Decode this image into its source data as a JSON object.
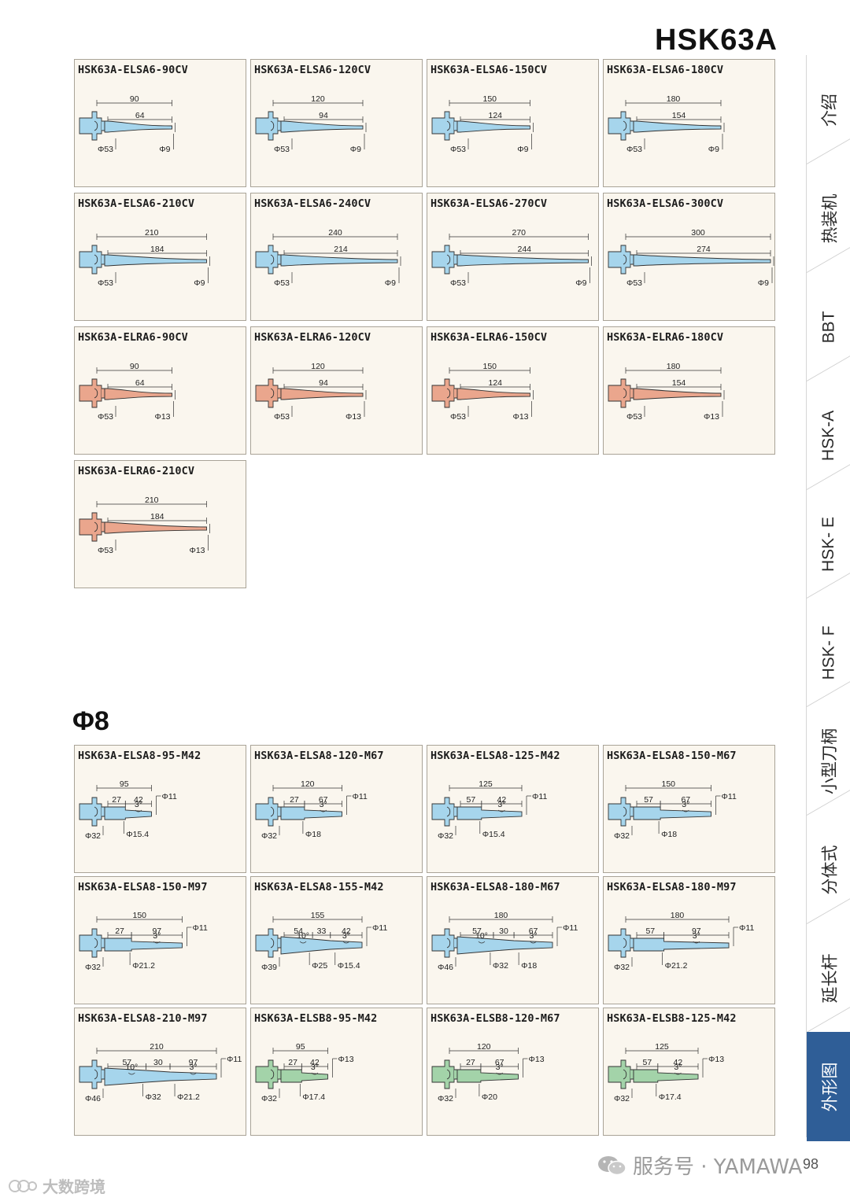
{
  "page_title": "HSK63A",
  "section_title": "Φ8",
  "group1": [
    {
      "model": "HSK63A-ELSA6-90CV",
      "kind": "cv",
      "color": "#a6d5ec",
      "l1": "90",
      "l2": "64",
      "d_shank": "Φ53",
      "d_tip": "Φ9",
      "len_ratio": 0.3
    },
    {
      "model": "HSK63A-ELSA6-120CV",
      "kind": "cv",
      "color": "#a6d5ec",
      "l1": "120",
      "l2": "94",
      "d_shank": "Φ53",
      "d_tip": "Φ9",
      "len_ratio": 0.4
    },
    {
      "model": "HSK63A-ELSA6-150CV",
      "kind": "cv",
      "color": "#a6d5ec",
      "l1": "150",
      "l2": "124",
      "d_shank": "Φ53",
      "d_tip": "Φ9",
      "len_ratio": 0.5
    },
    {
      "model": "HSK63A-ELSA6-180CV",
      "kind": "cv",
      "color": "#a6d5ec",
      "l1": "180",
      "l2": "154",
      "d_shank": "Φ53",
      "d_tip": "Φ9",
      "len_ratio": 0.6
    },
    {
      "model": "HSK63A-ELSA6-210CV",
      "kind": "cv",
      "color": "#a6d5ec",
      "l1": "210",
      "l2": "184",
      "d_shank": "Φ53",
      "d_tip": "Φ9",
      "len_ratio": 0.7
    },
    {
      "model": "HSK63A-ELSA6-240CV",
      "kind": "cv",
      "color": "#a6d5ec",
      "l1": "240",
      "l2": "214",
      "d_shank": "Φ53",
      "d_tip": "Φ9",
      "len_ratio": 0.8
    },
    {
      "model": "HSK63A-ELSA6-270CV",
      "kind": "cv",
      "color": "#a6d5ec",
      "l1": "270",
      "l2": "244",
      "d_shank": "Φ53",
      "d_tip": "Φ9",
      "len_ratio": 0.9
    },
    {
      "model": "HSK63A-ELSA6-300CV",
      "kind": "cv",
      "color": "#a6d5ec",
      "l1": "300",
      "l2": "274",
      "d_shank": "Φ53",
      "d_tip": "Φ9",
      "len_ratio": 1.0
    },
    {
      "model": "HSK63A-ELRA6-90CV",
      "kind": "cv",
      "color": "#eaa68d",
      "l1": "90",
      "l2": "64",
      "d_shank": "Φ53",
      "d_tip": "Φ13",
      "len_ratio": 0.3
    },
    {
      "model": "HSK63A-ELRA6-120CV",
      "kind": "cv",
      "color": "#eaa68d",
      "l1": "120",
      "l2": "94",
      "d_shank": "Φ53",
      "d_tip": "Φ13",
      "len_ratio": 0.4
    },
    {
      "model": "HSK63A-ELRA6-150CV",
      "kind": "cv",
      "color": "#eaa68d",
      "l1": "150",
      "l2": "124",
      "d_shank": "Φ53",
      "d_tip": "Φ13",
      "len_ratio": 0.5
    },
    {
      "model": "HSK63A-ELRA6-180CV",
      "kind": "cv",
      "color": "#eaa68d",
      "l1": "180",
      "l2": "154",
      "d_shank": "Φ53",
      "d_tip": "Φ13",
      "len_ratio": 0.6
    },
    {
      "model": "HSK63A-ELRA6-210CV",
      "kind": "cv",
      "color": "#eaa68d",
      "l1": "210",
      "l2": "184",
      "d_shank": "Φ53",
      "d_tip": "Φ13",
      "len_ratio": 0.7
    }
  ],
  "group2": [
    {
      "model": "HSK63A-ELSA8-95-M42",
      "kind": "m",
      "color": "#a6d5ec",
      "total": "95",
      "segs": [
        "27",
        "42"
      ],
      "angles": [
        "3°"
      ],
      "d_top": "Φ11",
      "d_shank": "Φ32",
      "d_bottom": [
        "Φ15.4"
      ],
      "len_ratio": 0.45
    },
    {
      "model": "HSK63A-ELSA8-120-M67",
      "kind": "m",
      "color": "#a6d5ec",
      "total": "120",
      "segs": [
        "27",
        "67"
      ],
      "angles": [
        "3°"
      ],
      "d_top": "Φ11",
      "d_shank": "Φ32",
      "d_bottom": [
        "Φ18"
      ],
      "len_ratio": 0.57
    },
    {
      "model": "HSK63A-ELSA8-125-M42",
      "kind": "m",
      "color": "#a6d5ec",
      "total": "125",
      "segs": [
        "57",
        "42"
      ],
      "angles": [
        "3°"
      ],
      "d_top": "Φ11",
      "d_shank": "Φ32",
      "d_bottom": [
        "Φ15.4"
      ],
      "len_ratio": 0.6
    },
    {
      "model": "HSK63A-ELSA8-150-M67",
      "kind": "m",
      "color": "#a6d5ec",
      "total": "150",
      "segs": [
        "57",
        "67"
      ],
      "angles": [
        "3°"
      ],
      "d_top": "Φ11",
      "d_shank": "Φ32",
      "d_bottom": [
        "Φ18"
      ],
      "len_ratio": 0.71
    },
    {
      "model": "HSK63A-ELSA8-150-M97",
      "kind": "m",
      "color": "#a6d5ec",
      "total": "150",
      "segs": [
        "27",
        "97"
      ],
      "angles": [
        "3°"
      ],
      "d_top": "Φ11",
      "d_shank": "Φ32",
      "d_bottom": [
        "Φ21.2"
      ],
      "len_ratio": 0.71
    },
    {
      "model": "HSK63A-ELSA8-155-M42",
      "kind": "m",
      "color": "#a6d5ec",
      "total": "155",
      "segs": [
        "54",
        "33",
        "42"
      ],
      "angles": [
        "10°",
        "3°"
      ],
      "d_top": "Φ11",
      "d_shank": "Φ39",
      "d_bottom": [
        "Φ25",
        "Φ15.4"
      ],
      "len_ratio": 0.74
    },
    {
      "model": "HSK63A-ELSA8-180-M67",
      "kind": "m",
      "color": "#a6d5ec",
      "total": "180",
      "segs": [
        "57",
        "30",
        "67"
      ],
      "angles": [
        "10°",
        "3°"
      ],
      "d_top": "Φ11",
      "d_shank": "Φ46",
      "d_bottom": [
        "Φ32",
        "Φ18"
      ],
      "len_ratio": 0.86
    },
    {
      "model": "HSK63A-ELSA8-180-M97",
      "kind": "m",
      "color": "#a6d5ec",
      "total": "180",
      "segs": [
        "57",
        "97"
      ],
      "angles": [
        "3°"
      ],
      "d_top": "Φ11",
      "d_shank": "Φ32",
      "d_bottom": [
        "Φ21.2"
      ],
      "len_ratio": 0.86
    },
    {
      "model": "HSK63A-ELSA8-210-M97",
      "kind": "m",
      "color": "#a6d5ec",
      "total": "210",
      "segs": [
        "57",
        "30",
        "97"
      ],
      "angles": [
        "10°",
        "3°"
      ],
      "d_top": "Φ11",
      "d_shank": "Φ46",
      "d_bottom": [
        "Φ32",
        "Φ21.2"
      ],
      "len_ratio": 1.0
    },
    {
      "model": "HSK63A-ELSB8-95-M42",
      "kind": "m",
      "color": "#a3d3a9",
      "total": "95",
      "segs": [
        "27",
        "42"
      ],
      "angles": [
        "3°"
      ],
      "d_top": "Φ13",
      "d_shank": "Φ32",
      "d_bottom": [
        "Φ17.4"
      ],
      "len_ratio": 0.45
    },
    {
      "model": "HSK63A-ELSB8-120-M67",
      "kind": "m",
      "color": "#a3d3a9",
      "total": "120",
      "segs": [
        "27",
        "67"
      ],
      "angles": [
        "3°"
      ],
      "d_top": "Φ13",
      "d_shank": "Φ32",
      "d_bottom": [
        "Φ20"
      ],
      "len_ratio": 0.57
    },
    {
      "model": "HSK63A-ELSB8-125-M42",
      "kind": "m",
      "color": "#a3d3a9",
      "total": "125",
      "segs": [
        "57",
        "42"
      ],
      "angles": [
        "3°"
      ],
      "d_top": "Φ13",
      "d_shank": "Φ32",
      "d_bottom": [
        "Φ17.4"
      ],
      "len_ratio": 0.6
    }
  ],
  "side_nav": [
    {
      "label": "介绍",
      "active": false
    },
    {
      "label": "热装机",
      "active": false
    },
    {
      "label": "BBT",
      "active": false
    },
    {
      "label": "HSK-A",
      "active": false
    },
    {
      "label": "HSK- E",
      "active": false
    },
    {
      "label": "HSK- F",
      "active": false
    },
    {
      "label": "小型刀柄",
      "active": false
    },
    {
      "label": "分体式",
      "active": false
    },
    {
      "label": "延长杆",
      "active": false
    },
    {
      "label": "外形图",
      "active": true
    }
  ],
  "footer": {
    "page_number": "98",
    "watermark_right": "服务号 · YAMAWA",
    "watermark_left": "大数跨境"
  },
  "colors": {
    "accent": "#2f5e97",
    "card_bg": "#faf6ee",
    "blue_fill": "#a6d5ec",
    "orange_fill": "#eaa68d",
    "green_fill": "#a3d3a9"
  }
}
